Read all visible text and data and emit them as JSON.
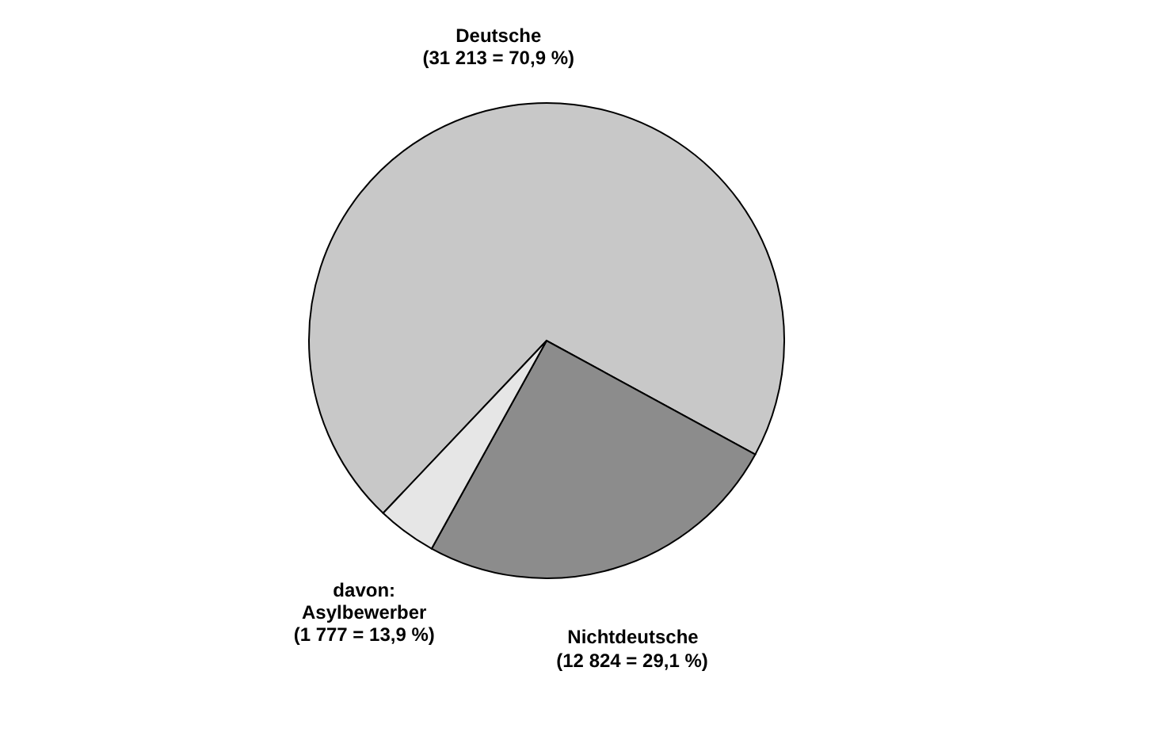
{
  "chart_data": {
    "type": "pie",
    "categories": [
      "Deutsche",
      "Nichtdeutsche",
      "davon:\nAsylbewerber"
    ],
    "values": [
      31213,
      11047,
      1777
    ],
    "value_labels": [
      "(31 213 = 70,9 %)",
      null,
      "(1 777 = 13,9 %)"
    ],
    "annotations": [
      "(12 824 = 29,1 %)"
    ],
    "colors": [
      "#c8c8c8",
      "#8c8c8c",
      "#e6e6e6"
    ],
    "legend": false
  }
}
